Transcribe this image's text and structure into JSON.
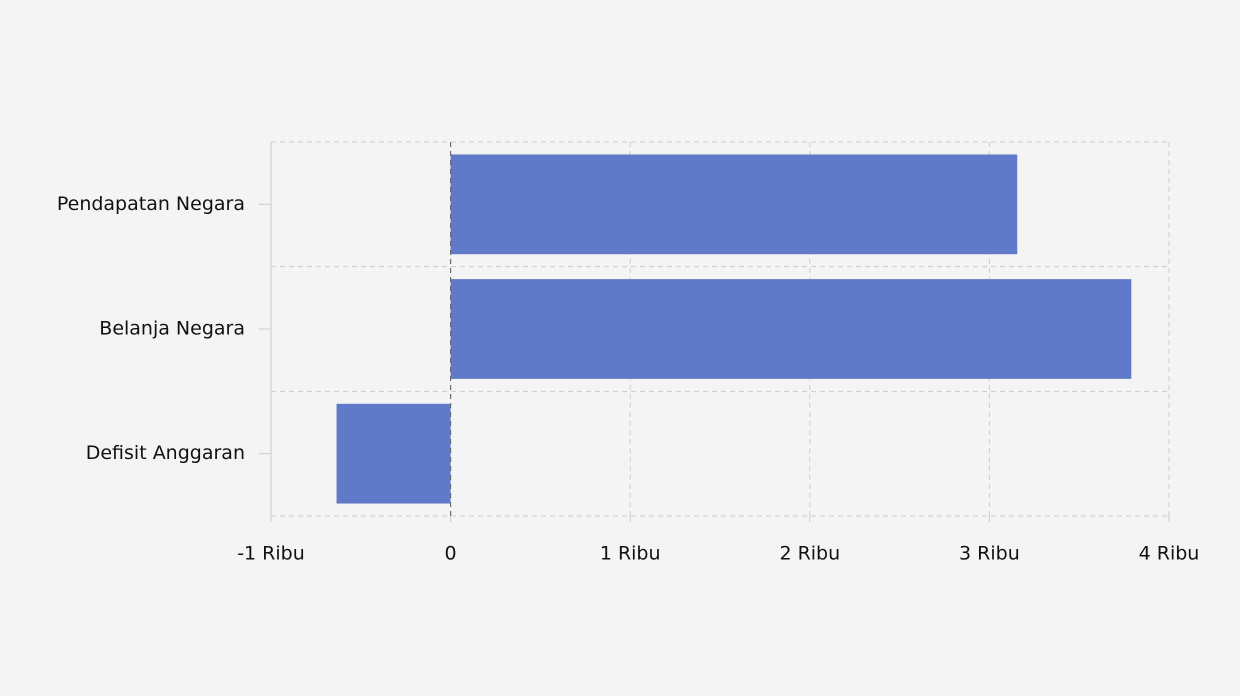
{
  "chart_data": {
    "type": "bar",
    "orientation": "horizontal",
    "categories": [
      "Pendapatan Negara",
      "Belanja Negara",
      "Defisit Anggaran"
    ],
    "values": [
      3155,
      3790,
      -635
    ],
    "color": "#6079c9",
    "xlim": [
      -1000,
      4000
    ],
    "xticks": [
      {
        "value": -1000,
        "label": "-1 Ribu"
      },
      0,
      {
        "value": 1000,
        "label": "1 Ribu"
      },
      {
        "value": 2000,
        "label": "2 Ribu"
      },
      {
        "value": 3000,
        "label": "3 Ribu"
      },
      {
        "value": 4000,
        "label": "4 Ribu"
      }
    ],
    "grid": true
  }
}
